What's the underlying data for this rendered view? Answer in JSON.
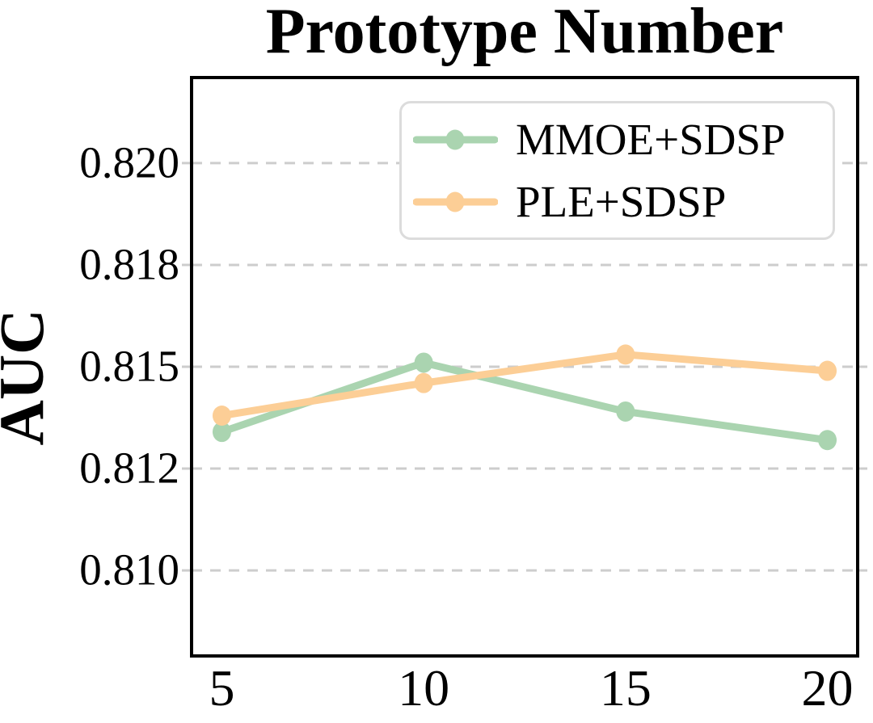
{
  "figure": {
    "title": "Prototype Number",
    "ylabel": "AUC"
  },
  "chart_data": {
    "type": "line",
    "title": "Prototype Number",
    "xlabel": "",
    "ylabel": "AUC",
    "x": [
      5,
      10,
      15,
      20
    ],
    "series": [
      {
        "name": "MMOE+SDSP",
        "color": "#aad4b0",
        "values": [
          0.8134,
          0.8151,
          0.8139,
          0.8132
        ]
      },
      {
        "name": "PLE+SDSP",
        "color": "#fcce96",
        "values": [
          0.8138,
          0.8146,
          0.8153,
          0.8149
        ]
      }
    ],
    "xlim": [
      4.25,
      20.75
    ],
    "ylim": [
      0.8079,
      0.8221
    ],
    "yticks": {
      "values": [
        0.82,
        0.8175,
        0.815,
        0.8125,
        0.81
      ],
      "labels": [
        "0.820",
        "0.818",
        "0.815",
        "0.812",
        "0.810"
      ]
    },
    "xticks": {
      "values": [
        5,
        10,
        15,
        20
      ],
      "labels": [
        "5",
        "10",
        "15",
        "20"
      ]
    },
    "grid": "horizontal dashed",
    "grid_color": "#cdcdcd",
    "spine_color": "#000000",
    "legend_position": "upper right inside"
  }
}
